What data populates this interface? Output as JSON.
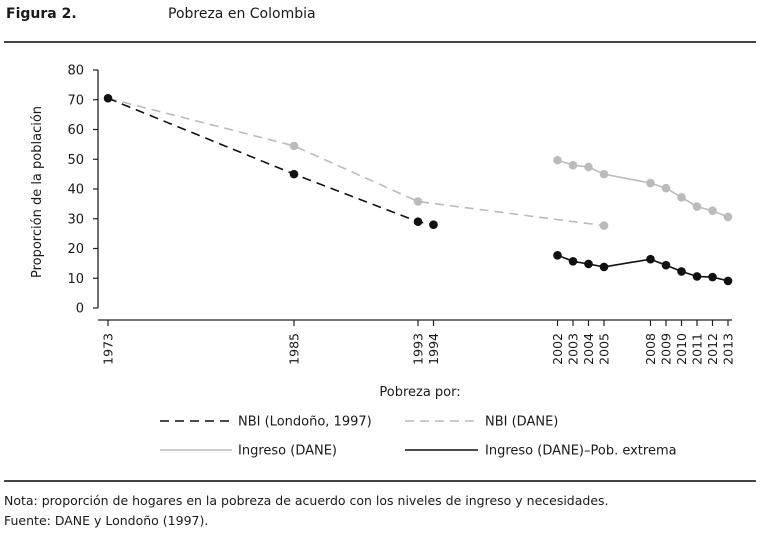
{
  "header": {
    "figure_label": "Figura 2.",
    "title": "Pobreza en Colombia"
  },
  "chart_data": {
    "type": "line",
    "ylabel": "Proporción de la población",
    "xlabel": "Pobreza por:",
    "ylim": [
      0,
      80
    ],
    "yticks": [
      0,
      10,
      20,
      30,
      40,
      50,
      60,
      70,
      80
    ],
    "xlim": [
      1973,
      2013
    ],
    "xticks": [
      1973,
      1985,
      1993,
      1994,
      2002,
      2003,
      2004,
      2005,
      2008,
      2009,
      2010,
      2011,
      2012,
      2013
    ],
    "series": [
      {
        "name": "NBI (Londoño, 1997)",
        "color": "#111111",
        "dash": "dashed",
        "marker": true,
        "points": [
          [
            1973,
            70.5
          ],
          [
            1985,
            45
          ],
          [
            1993,
            29
          ],
          [
            1994,
            28
          ]
        ]
      },
      {
        "name": "NBI (DANE)",
        "color": "#bbbbbb",
        "dash": "dashed",
        "marker": true,
        "points": [
          [
            1973,
            70.5
          ],
          [
            1985,
            54.5
          ],
          [
            1993,
            35.8
          ],
          [
            2005,
            27.7
          ]
        ]
      },
      {
        "name": "Ingreso (DANE)",
        "color": "#bbbbbb",
        "dash": "solid",
        "marker": true,
        "points": [
          [
            2002,
            49.7
          ],
          [
            2003,
            48.0
          ],
          [
            2004,
            47.4
          ],
          [
            2005,
            45.0
          ],
          [
            2008,
            42.0
          ],
          [
            2009,
            40.3
          ],
          [
            2010,
            37.2
          ],
          [
            2011,
            34.1
          ],
          [
            2012,
            32.7
          ],
          [
            2013,
            30.6
          ]
        ]
      },
      {
        "name": "Ingreso (DANE)–Pob. extrema",
        "color": "#111111",
        "dash": "solid",
        "marker": true,
        "points": [
          [
            2002,
            17.7
          ],
          [
            2003,
            15.7
          ],
          [
            2004,
            14.8
          ],
          [
            2005,
            13.8
          ],
          [
            2008,
            16.4
          ],
          [
            2009,
            14.4
          ],
          [
            2010,
            12.3
          ],
          [
            2011,
            10.6
          ],
          [
            2012,
            10.4
          ],
          [
            2013,
            9.1
          ]
        ]
      }
    ],
    "legend_title": "Pobreza por:",
    "legend_position": "bottom"
  },
  "footer": {
    "note": "Nota: proporción de hogares en la pobreza de acuerdo con los niveles de ingreso y necesidades.",
    "source": "Fuente: DANE y Londoño (1997)."
  }
}
